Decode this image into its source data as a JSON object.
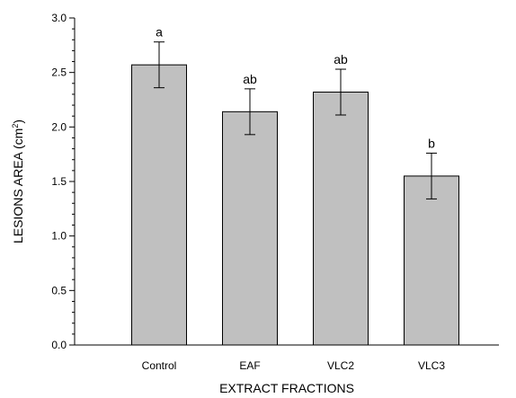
{
  "chart_data": {
    "type": "bar",
    "categories": [
      "Control",
      "EAF",
      "VLC2",
      "VLC3"
    ],
    "values": [
      2.57,
      2.14,
      2.32,
      1.55
    ],
    "errors": [
      0.21,
      0.21,
      0.21,
      0.21
    ],
    "significance": [
      "a",
      "ab",
      "ab",
      "b"
    ],
    "xlabel": "EXTRACT FRACTIONS",
    "ylabel_main": "LESIONS AREA (cm",
    "ylabel_sup": "2",
    "ylabel_close": ")",
    "ylim": [
      0,
      3.0
    ],
    "yticks": [
      "0.0",
      "0.5",
      "1.0",
      "1.5",
      "2.0",
      "2.5",
      "3.0"
    ],
    "ytick_values": [
      0,
      0.5,
      1.0,
      1.5,
      2.0,
      2.5,
      3.0
    ],
    "minor_tick_step": 0.1,
    "bar_color": "#c0c0c0",
    "bar_edge": "#000000",
    "grid": false,
    "legend": "none"
  }
}
